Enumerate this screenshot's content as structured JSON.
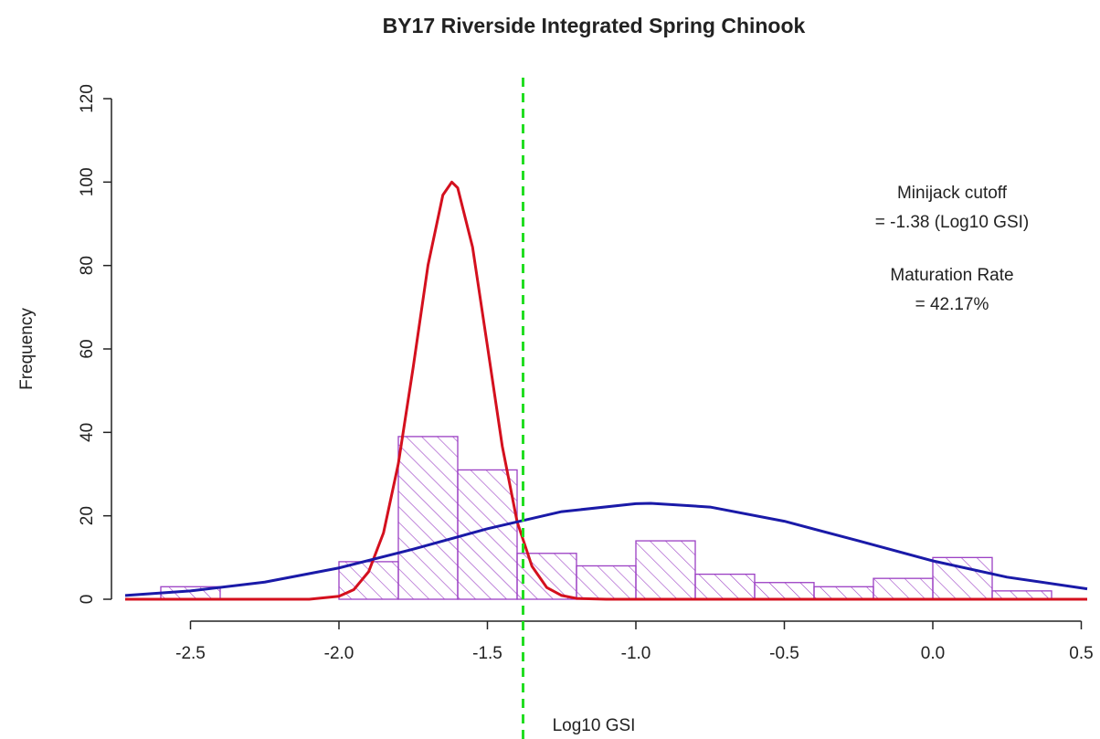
{
  "chart_data": {
    "type": "histogram",
    "title": "BY17 Riverside Integrated Spring Chinook",
    "x_label": "Log10 GSI",
    "y_label": "Frequency",
    "bins": [
      -2.6,
      -2.4,
      -2.2,
      -2.0,
      -1.8,
      -1.6,
      -1.4,
      -1.2,
      -1.0,
      -0.8,
      -0.6,
      -0.4,
      -0.2,
      0.0,
      0.2,
      0.4
    ],
    "counts": [
      3,
      0,
      0,
      9,
      39,
      31,
      11,
      8,
      14,
      6,
      4,
      3,
      5,
      10,
      2
    ],
    "color": "#9b3fc4",
    "curves": [
      {
        "color": "#d4101e",
        "x": [
          -2.72,
          -2.1,
          -2.0,
          -1.95,
          -1.9,
          -1.85,
          -1.8,
          -1.75,
          -1.7,
          -1.65,
          -1.62,
          -1.6,
          -1.55,
          -1.5,
          -1.45,
          -1.4,
          -1.35,
          -1.3,
          -1.25,
          -1.2,
          -1.1,
          0.52
        ],
        "values": [
          0,
          0,
          0.7,
          2.3,
          6.6,
          15.9,
          32.5,
          55.6,
          80.1,
          96.9,
          100,
          98.6,
          84.4,
          60.7,
          36.7,
          18.6,
          7.9,
          2.8,
          0.9,
          0.2,
          0,
          0
        ]
      },
      {
        "color": "#1a1aa8",
        "x": [
          -2.72,
          -2.5,
          -2.25,
          -2.0,
          -1.75,
          -1.5,
          -1.25,
          -1.0,
          -0.95,
          -0.75,
          -0.5,
          -0.25,
          0.0,
          0.25,
          0.52
        ],
        "values": [
          0.9,
          2.0,
          4.1,
          7.5,
          12.0,
          16.9,
          21.0,
          22.9,
          23,
          22.1,
          18.7,
          14.0,
          9.2,
          5.3,
          2.5
        ]
      }
    ],
    "cutoff": -1.38,
    "cutoff_color": "#22dd22",
    "annotations": [
      "Minijack cutoff",
      "= -1.38 (Log10 GSI)",
      "Maturation Rate",
      "= 42.17%"
    ],
    "xlim": [
      -2.72,
      0.52
    ],
    "ylim": [
      0,
      120
    ],
    "xticks": [
      -2.5,
      {
        "value": -2.0,
        "label": "-2.0"
      },
      -1.5,
      {
        "value": -1.0,
        "label": "-1.0"
      },
      -0.5,
      {
        "value": 0.0,
        "label": "0.0"
      },
      0.5
    ],
    "yticks": [
      0,
      20,
      40,
      60,
      80,
      100,
      120
    ]
  }
}
